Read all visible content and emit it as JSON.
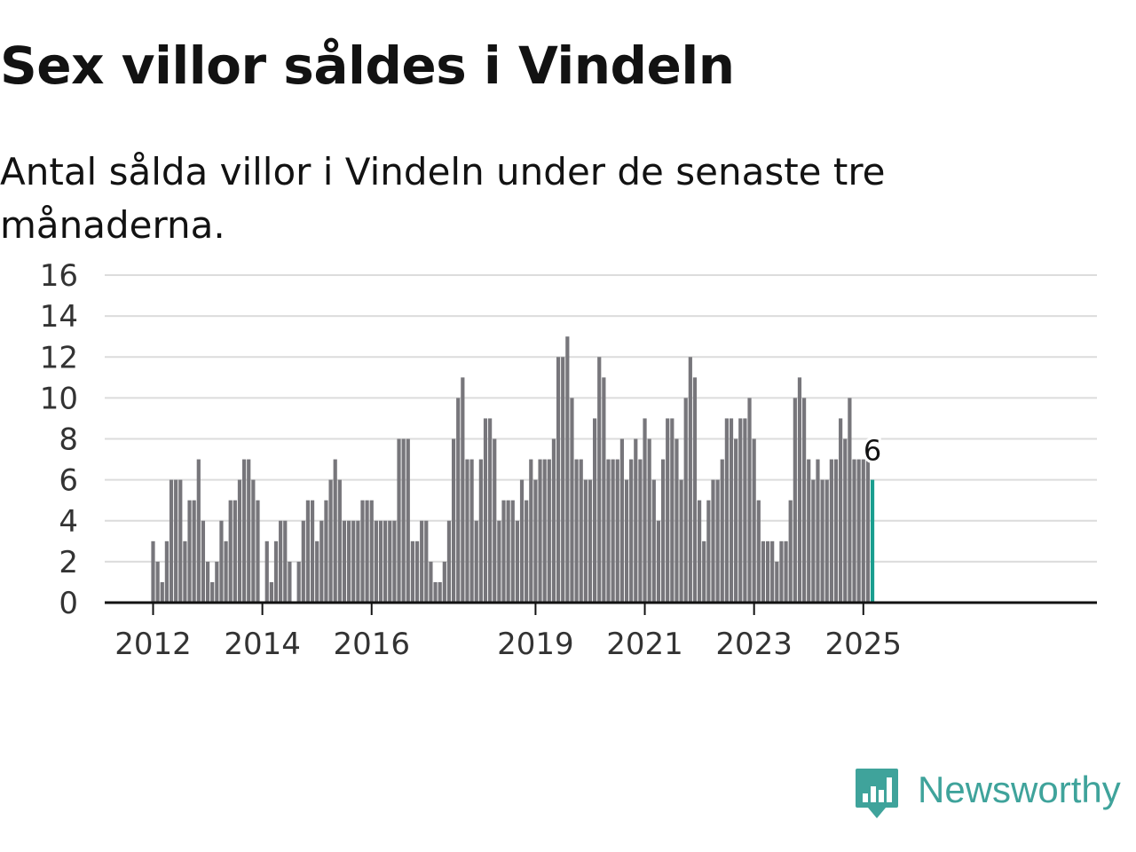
{
  "title": "Sex villor såldes i Vindeln",
  "subtitle": "Antal sålda villor i Vindeln under de senaste tre månaderna.",
  "brand": {
    "name": "Newsworthy",
    "icon": "newsworthy-logo-icon",
    "color": "#3fa39b"
  },
  "colors": {
    "bar": "#77767b",
    "highlight": "#1a9e8f",
    "grid": "#dcdcdc",
    "axis": "#121212"
  },
  "chart_data": {
    "type": "bar",
    "x_start_month": "2012-01",
    "x_end_month": "2025-03",
    "ylim": [
      0,
      16
    ],
    "yticks": [
      "0",
      "2",
      "4",
      "6",
      "8",
      "10",
      "12",
      "14",
      "16"
    ],
    "xticks": [
      {
        "label": "2012",
        "month": "2012-01"
      },
      {
        "label": "2014",
        "month": "2014-01"
      },
      {
        "label": "2016",
        "month": "2016-01"
      },
      {
        "label": "2019",
        "month": "2019-01"
      },
      {
        "label": "2021",
        "month": "2021-01"
      },
      {
        "label": "2023",
        "month": "2023-01"
      },
      {
        "label": "2025",
        "month": "2025-01"
      }
    ],
    "values": [
      3,
      2,
      1,
      3,
      6,
      6,
      6,
      3,
      5,
      5,
      7,
      4,
      2,
      1,
      2,
      4,
      3,
      5,
      5,
      6,
      7,
      7,
      6,
      5,
      0,
      3,
      1,
      3,
      4,
      4,
      2,
      0,
      2,
      4,
      5,
      5,
      3,
      4,
      5,
      6,
      7,
      6,
      4,
      4,
      4,
      4,
      5,
      5,
      5,
      4,
      4,
      4,
      4,
      4,
      8,
      8,
      8,
      3,
      3,
      4,
      4,
      2,
      1,
      1,
      2,
      4,
      8,
      10,
      11,
      7,
      7,
      4,
      7,
      9,
      9,
      8,
      4,
      5,
      5,
      5,
      4,
      6,
      5,
      7,
      6,
      7,
      7,
      7,
      8,
      12,
      12,
      13,
      10,
      7,
      7,
      6,
      6,
      9,
      12,
      11,
      7,
      7,
      7,
      8,
      6,
      7,
      8,
      7,
      9,
      8,
      6,
      4,
      7,
      9,
      9,
      8,
      6,
      10,
      12,
      11,
      5,
      3,
      5,
      6,
      6,
      7,
      9,
      9,
      8,
      9,
      9,
      10,
      8,
      5,
      3,
      3,
      3,
      2,
      3,
      3,
      5,
      10,
      11,
      10,
      7,
      6,
      7,
      6,
      6,
      7,
      7,
      9,
      8,
      10,
      7,
      7,
      7,
      7,
      6
    ],
    "highlight": {
      "label": "6",
      "value": 6
    }
  }
}
